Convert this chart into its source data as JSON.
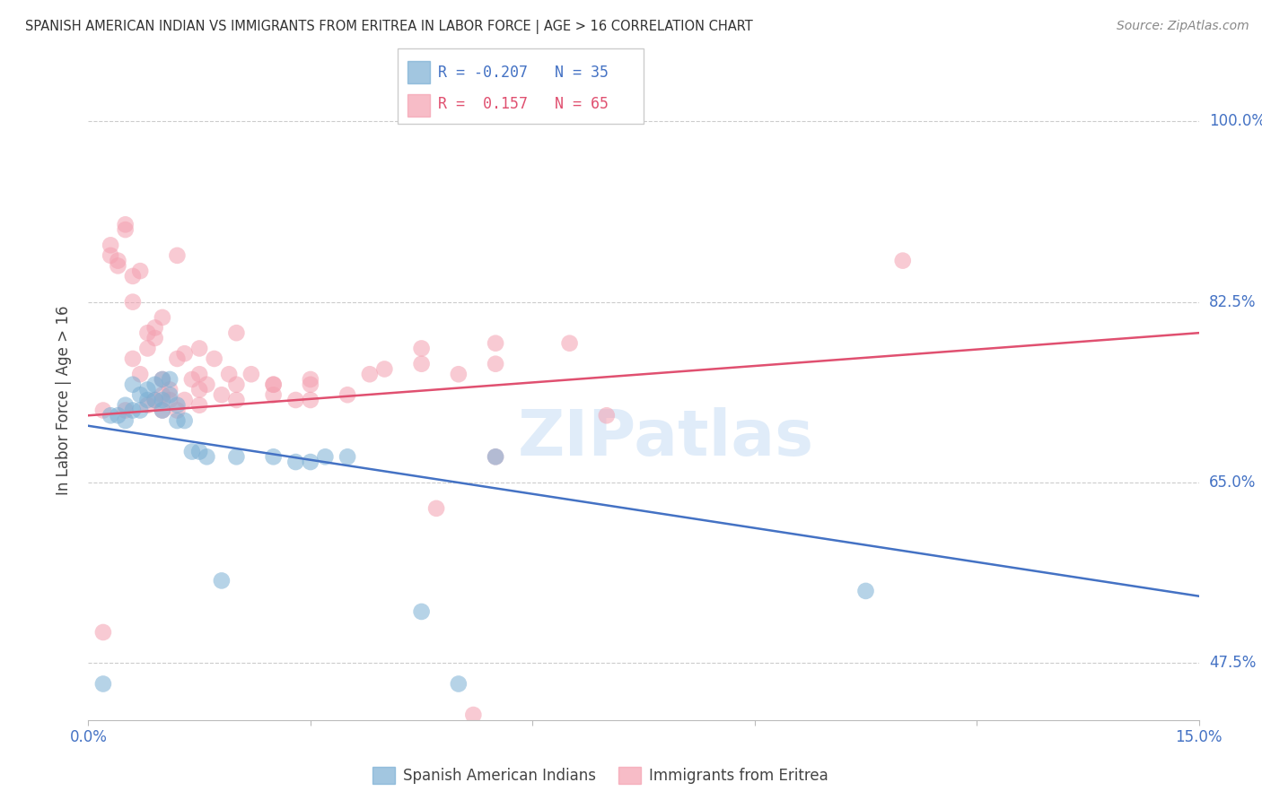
{
  "title": "SPANISH AMERICAN INDIAN VS IMMIGRANTS FROM ERITREA IN LABOR FORCE | AGE > 16 CORRELATION CHART",
  "source": "Source: ZipAtlas.com",
  "ylabel": "In Labor Force | Age > 16",
  "xlim": [
    0.0,
    15.0
  ],
  "ylim": [
    42.0,
    104.0
  ],
  "yticks": [
    47.5,
    65.0,
    82.5,
    100.0
  ],
  "ytick_labels": [
    "47.5%",
    "65.0%",
    "82.5%",
    "100.0%"
  ],
  "xticks": [
    0.0,
    3.0,
    6.0,
    9.0,
    12.0,
    15.0
  ],
  "xtick_labels": [
    "0.0%",
    "",
    "",
    "",
    "",
    "15.0%"
  ],
  "background_color": "#ffffff",
  "grid_color": "#cccccc",
  "blue_color": "#7bafd4",
  "pink_color": "#f4a0b0",
  "blue_line_color": "#4472c4",
  "pink_line_color": "#e05070",
  "legend_r_blue": "-0.207",
  "legend_n_blue": "35",
  "legend_r_pink": "0.157",
  "legend_n_pink": "65",
  "blue_scatter_x": [
    0.2,
    0.3,
    0.4,
    0.5,
    0.5,
    0.6,
    0.6,
    0.7,
    0.7,
    0.8,
    0.8,
    0.9,
    0.9,
    1.0,
    1.0,
    1.0,
    1.1,
    1.1,
    1.2,
    1.2,
    1.3,
    1.4,
    1.5,
    1.6,
    1.8,
    2.0,
    2.5,
    2.8,
    3.0,
    3.2,
    3.5,
    4.5,
    5.0,
    5.5,
    10.5
  ],
  "blue_scatter_y": [
    45.5,
    71.5,
    71.5,
    72.5,
    71.0,
    72.0,
    74.5,
    72.0,
    73.5,
    73.0,
    74.0,
    73.0,
    74.5,
    73.0,
    72.0,
    75.0,
    73.5,
    75.0,
    72.5,
    71.0,
    71.0,
    68.0,
    68.0,
    67.5,
    55.5,
    67.5,
    67.5,
    67.0,
    67.0,
    67.5,
    67.5,
    52.5,
    45.5,
    67.5,
    54.5
  ],
  "pink_scatter_x": [
    0.2,
    0.3,
    0.4,
    0.5,
    0.5,
    0.6,
    0.7,
    0.7,
    0.8,
    0.8,
    0.9,
    0.9,
    1.0,
    1.0,
    1.0,
    1.1,
    1.1,
    1.2,
    1.2,
    1.3,
    1.4,
    1.5,
    1.5,
    1.5,
    1.6,
    1.7,
    1.8,
    1.9,
    2.0,
    2.0,
    2.2,
    2.5,
    2.5,
    2.8,
    3.0,
    3.0,
    3.5,
    3.8,
    4.0,
    4.5,
    5.0,
    5.5,
    5.5,
    6.5,
    7.0,
    0.3,
    0.4,
    0.5,
    0.6,
    0.8,
    1.0,
    1.2,
    1.3,
    1.5,
    2.0,
    2.5,
    3.0,
    4.5,
    5.5,
    11.0,
    4.7,
    5.2,
    0.2,
    0.6,
    0.9
  ],
  "pink_scatter_y": [
    50.5,
    87.0,
    86.0,
    89.5,
    72.0,
    77.0,
    85.5,
    75.5,
    78.0,
    72.5,
    79.0,
    73.0,
    73.5,
    75.0,
    72.0,
    73.0,
    74.0,
    72.0,
    77.0,
    73.0,
    75.0,
    75.5,
    72.5,
    74.0,
    74.5,
    77.0,
    73.5,
    75.5,
    73.0,
    74.5,
    75.5,
    73.5,
    74.5,
    73.0,
    74.5,
    73.0,
    73.5,
    75.5,
    76.0,
    76.5,
    75.5,
    76.5,
    67.5,
    78.5,
    71.5,
    88.0,
    86.5,
    90.0,
    85.0,
    79.5,
    81.0,
    87.0,
    77.5,
    78.0,
    79.5,
    74.5,
    75.0,
    78.0,
    78.5,
    86.5,
    62.5,
    42.5,
    72.0,
    82.5,
    80.0
  ],
  "blue_trend_x": [
    0.0,
    15.0
  ],
  "blue_trend_y": [
    70.5,
    54.0
  ],
  "pink_trend_x": [
    0.0,
    15.0
  ],
  "pink_trend_y": [
    71.5,
    79.5
  ]
}
